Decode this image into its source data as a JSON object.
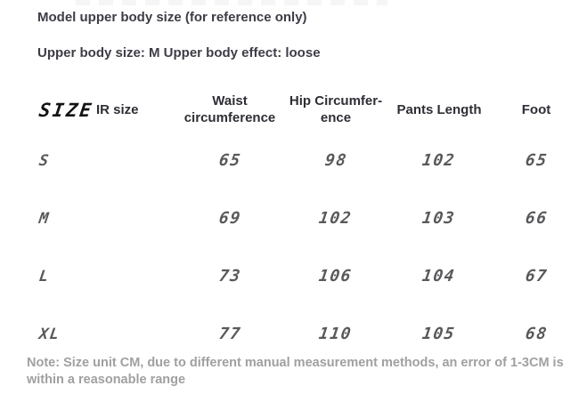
{
  "strings": {
    "title": "Model upper body size (for reference only)",
    "subtitle": "Upper body size: M Upper body effect: loose",
    "note": "Note: Size unit CM, due to different manual measurement methods, an error of 1-3CM is\nwithin a reasonable range"
  },
  "size_table": {
    "headers": [
      "SIZE",
      "IR size",
      "Waist\ncircumference",
      "Hip Circumfer-\nence",
      "Pants Length",
      "Foot"
    ],
    "unit": "CM",
    "rows": [
      {
        "size": "S",
        "ir_size": "",
        "waist": "65",
        "hip": "98",
        "pants_length": "102",
        "foot": "65"
      },
      {
        "size": "M",
        "ir_size": "",
        "waist": "69",
        "hip": "102",
        "pants_length": "103",
        "foot": "66"
      },
      {
        "size": "L",
        "ir_size": "",
        "waist": "73",
        "hip": "106",
        "pants_length": "104",
        "foot": "67"
      },
      {
        "size": "XL",
        "ir_size": "",
        "waist": "77",
        "hip": "110",
        "pants_length": "105",
        "foot": "68"
      }
    ]
  },
  "colors": {
    "background": "#ffffff",
    "title_text": "#3d3d47",
    "header_text": "#2e2e36",
    "size_header_text": "#121212",
    "table_value_text": "#59595c",
    "note_text": "#a0a0a2"
  }
}
